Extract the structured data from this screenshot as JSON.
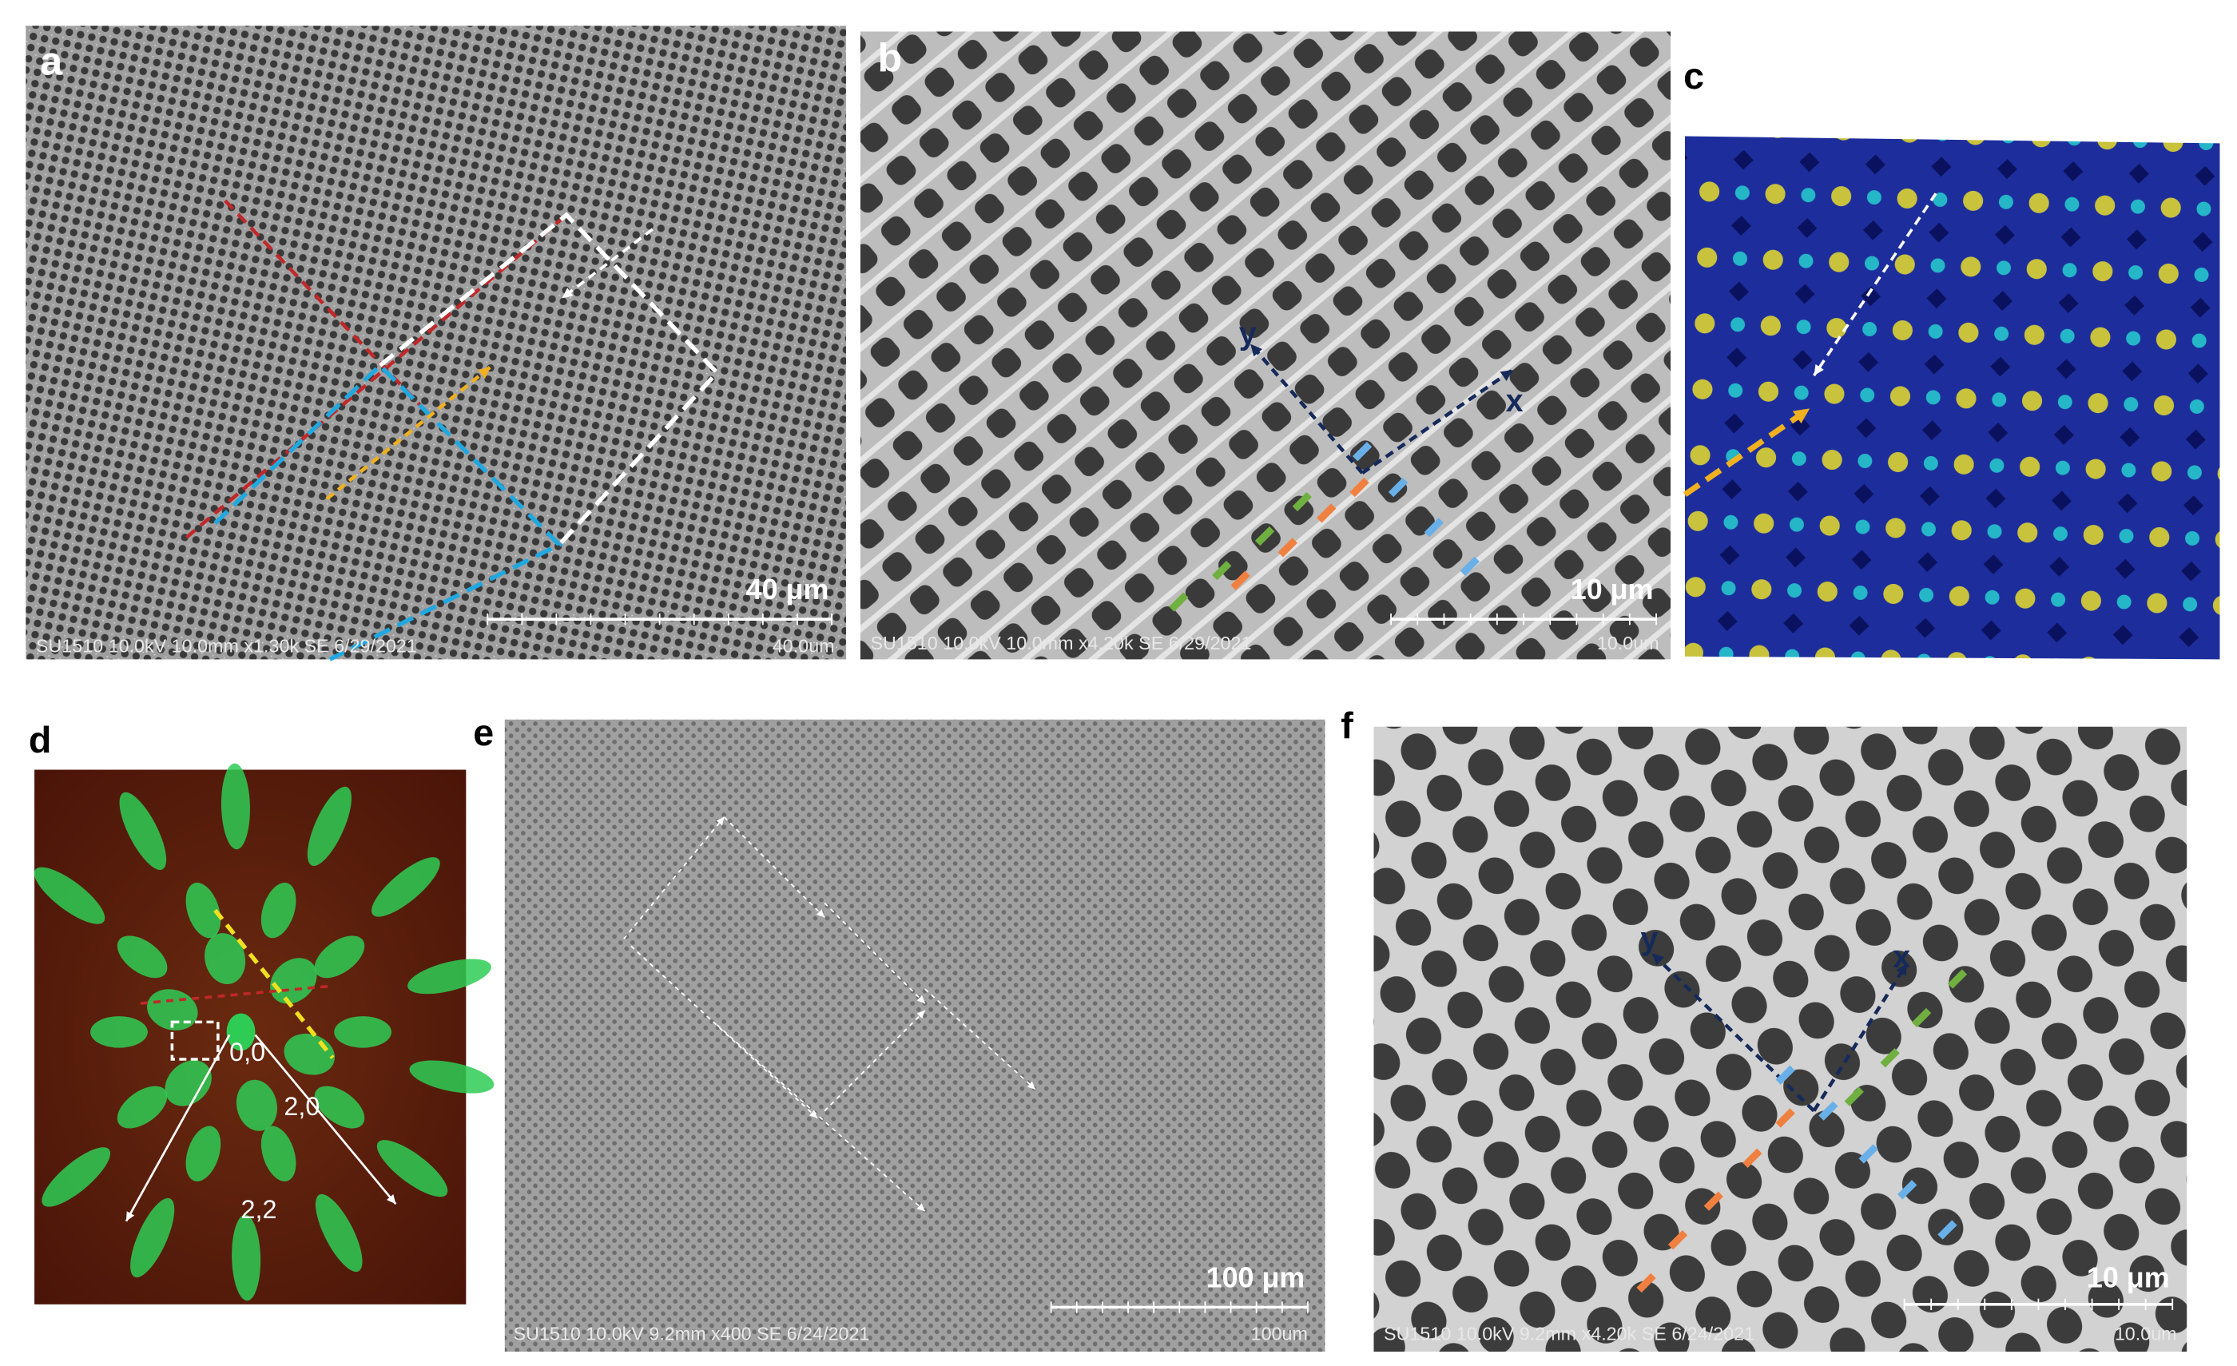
{
  "panels": [
    {
      "label": "a",
      "scale_label": "40 μm",
      "info": "SU1510 10.0kV 10.0mm x1.30k SE 6/29/2021",
      "scale_value": "40.0um"
    },
    {
      "label": "b",
      "scale_label": "10 μm",
      "info": "SU1510 10.0kV 10.0mm x4.20k SE 6/29/2021",
      "scale_value": "10.0um",
      "axis_y": "y",
      "axis_x": "x"
    },
    {
      "label": "c"
    },
    {
      "label": "d",
      "spots": [
        "0,0",
        "2,0",
        "2,2"
      ]
    },
    {
      "label": "e",
      "scale_label": "100 μm",
      "info": "SU1510 10.0kV 9.2mm x400 SE 6/24/2021",
      "scale_value": "100um"
    },
    {
      "label": "f",
      "scale_label": "10 μm",
      "info": "SU1510 10.0kV 9.2mm x4.20k SE 6/24/2021",
      "scale_value": "10.0um",
      "axis_y": "y",
      "axis_x": "x"
    }
  ]
}
